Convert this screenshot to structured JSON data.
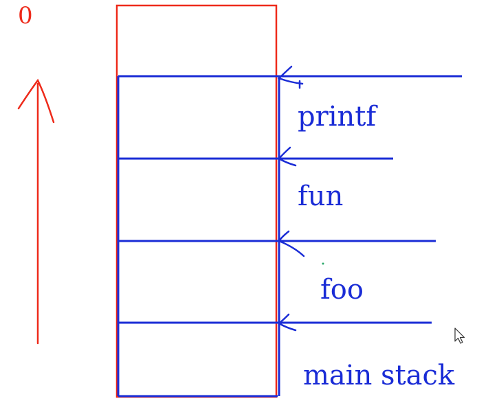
{
  "diagram": {
    "top_marker": "0",
    "frames": [
      {
        "label": "printf"
      },
      {
        "label": "fun"
      },
      {
        "label": "foo"
      },
      {
        "label": "main stack"
      }
    ]
  },
  "colors": {
    "red": "#ee2a1a",
    "blue": "#1a2cd6"
  },
  "icons": {
    "cursor": "mouse-pointer-icon",
    "direction": "up-arrow-icon"
  }
}
